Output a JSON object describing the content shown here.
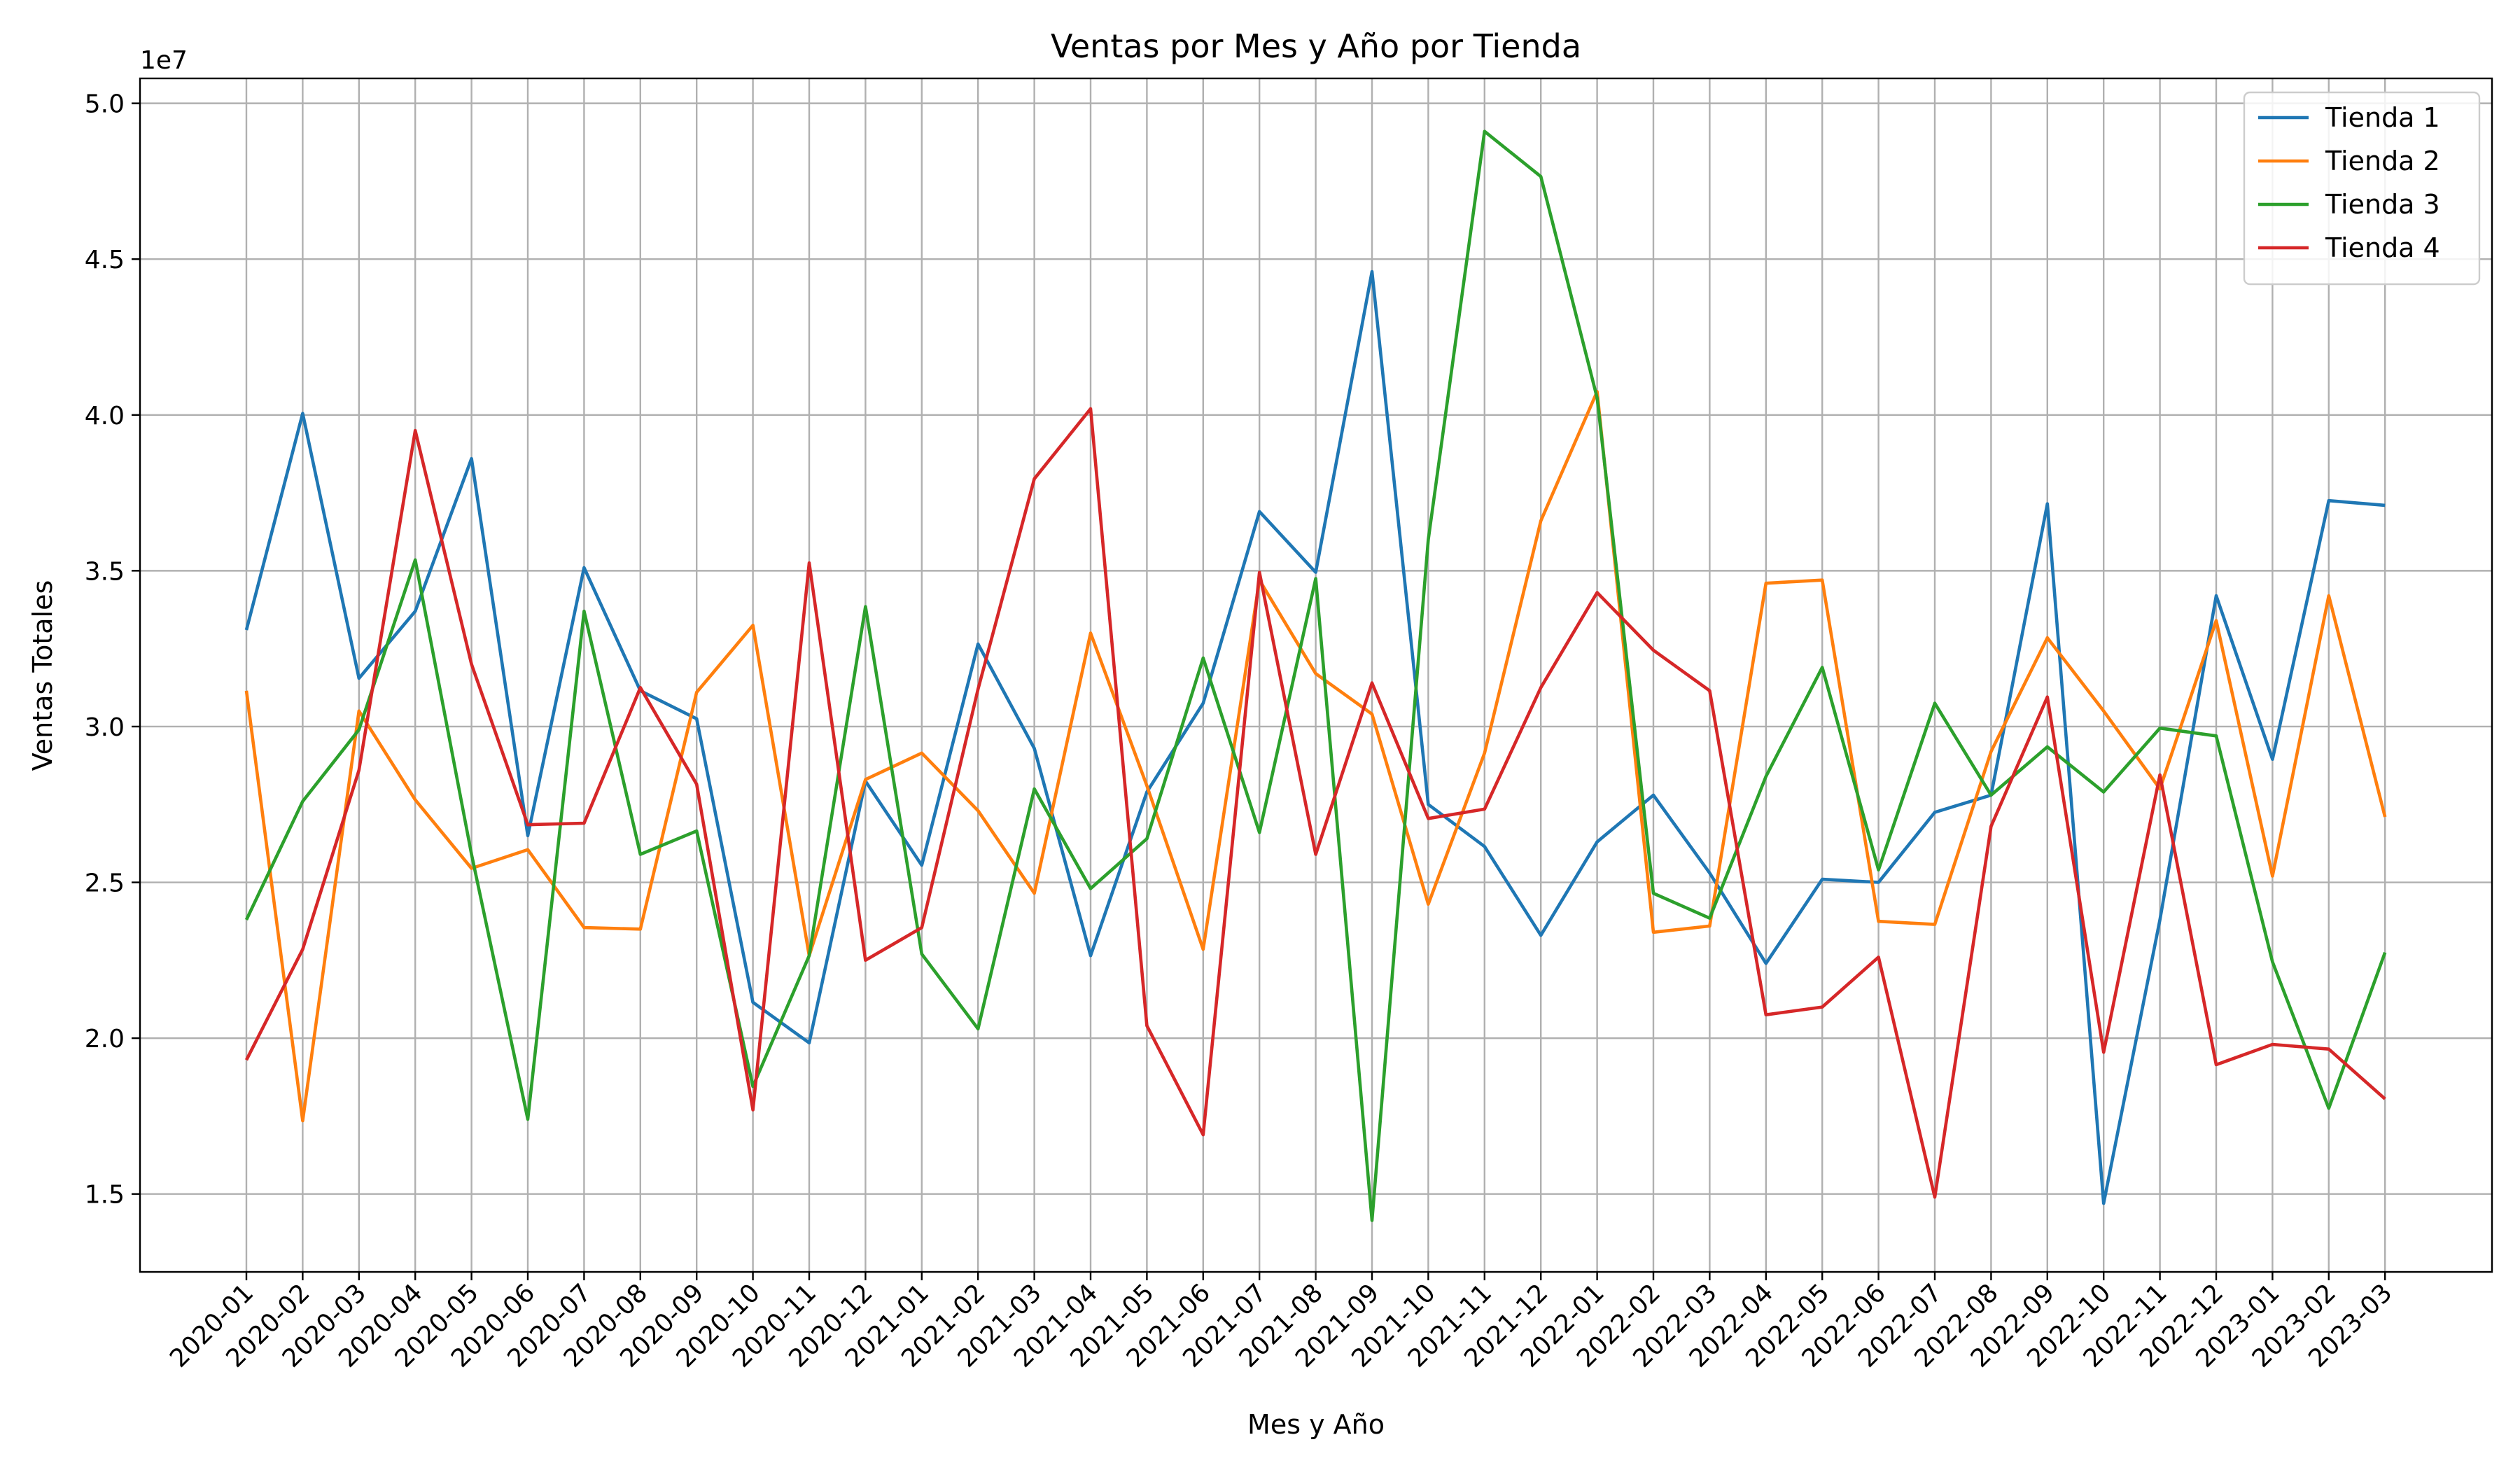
{
  "chart_data": {
    "type": "line",
    "title": "Ventas por Mes y Año por Tienda",
    "xlabel": "Mes y Año",
    "ylabel": "Ventas Totales",
    "y_offset_label": "1e7",
    "y_scale": 10000000,
    "ylim": [
      12500000,
      50800000
    ],
    "yticks": [
      15000000,
      20000000,
      25000000,
      30000000,
      35000000,
      40000000,
      45000000,
      50000000
    ],
    "ytick_labels": [
      "1.5",
      "2.0",
      "2.5",
      "3.0",
      "3.5",
      "4.0",
      "4.5",
      "5.0"
    ],
    "grid": true,
    "legend_position": "top-right",
    "x": [
      "2020-01",
      "2020-02",
      "2020-03",
      "2020-04",
      "2020-05",
      "2020-06",
      "2020-07",
      "2020-08",
      "2020-09",
      "2020-10",
      "2020-11",
      "2020-12",
      "2021-01",
      "2021-02",
      "2021-03",
      "2021-04",
      "2021-05",
      "2021-06",
      "2021-07",
      "2021-08",
      "2021-09",
      "2021-10",
      "2021-11",
      "2021-12",
      "2022-01",
      "2022-02",
      "2022-03",
      "2022-04",
      "2022-05",
      "2022-06",
      "2022-07",
      "2022-08",
      "2022-09",
      "2022-10",
      "2022-11",
      "2022-12",
      "2023-01",
      "2023-02",
      "2023-03"
    ],
    "series": [
      {
        "name": "Tienda 1",
        "color": "#1f77b4",
        "values": [
          33100000,
          40050000,
          31550000,
          33700000,
          38600000,
          26500000,
          35100000,
          31150000,
          30250000,
          21150000,
          19850000,
          28250000,
          25550000,
          32650000,
          29300000,
          22650000,
          27900000,
          30750000,
          36900000,
          34950000,
          44600000,
          27500000,
          26150000,
          23300000,
          26300000,
          27800000,
          25300000,
          22400000,
          25100000,
          25000000,
          27250000,
          27800000,
          37150000,
          14700000,
          23800000,
          34200000,
          28950000,
          37250000,
          37100000
        ]
      },
      {
        "name": "Tienda 2",
        "color": "#ff7f0e",
        "values": [
          31150000,
          17350000,
          30500000,
          27650000,
          25450000,
          26050000,
          23550000,
          23500000,
          31100000,
          33250000,
          22650000,
          28300000,
          29150000,
          27300000,
          24650000,
          33000000,
          28100000,
          22850000,
          34700000,
          31700000,
          30400000,
          24300000,
          29150000,
          36600000,
          40750000,
          23400000,
          23600000,
          34600000,
          34700000,
          23750000,
          23650000,
          29200000,
          32850000,
          30500000,
          28000000,
          33400000,
          25200000,
          34200000,
          27100000
        ]
      },
      {
        "name": "Tienda 3",
        "color": "#2ca02c",
        "values": [
          23800000,
          27600000,
          29900000,
          35350000,
          25900000,
          17400000,
          33700000,
          25900000,
          26650000,
          18450000,
          22650000,
          33850000,
          22700000,
          20300000,
          28000000,
          24800000,
          26400000,
          32200000,
          26600000,
          34750000,
          14150000,
          36000000,
          49100000,
          47650000,
          40550000,
          24650000,
          23850000,
          28400000,
          31900000,
          25400000,
          30750000,
          27800000,
          29350000,
          27900000,
          29950000,
          29700000,
          22450000,
          17750000,
          22750000
        ]
      },
      {
        "name": "Tienda 4",
        "color": "#d62728",
        "values": [
          19300000,
          22850000,
          28600000,
          39500000,
          32000000,
          26850000,
          26900000,
          31250000,
          28150000,
          17700000,
          35250000,
          22500000,
          23550000,
          31200000,
          37950000,
          40200000,
          20400000,
          16900000,
          34950000,
          25900000,
          31400000,
          27050000,
          27350000,
          31250000,
          34300000,
          32450000,
          31150000,
          20750000,
          21000000,
          22600000,
          14900000,
          26800000,
          30950000,
          19550000,
          28450000,
          19150000,
          19800000,
          19650000,
          18050000
        ]
      }
    ]
  }
}
